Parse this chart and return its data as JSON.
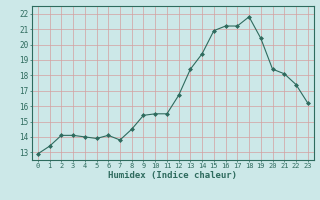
{
  "xlabel": "Humidex (Indice chaleur)",
  "ylabel": "",
  "x": [
    0,
    1,
    2,
    3,
    4,
    5,
    6,
    7,
    8,
    9,
    10,
    11,
    12,
    13,
    14,
    15,
    16,
    17,
    18,
    19,
    20,
    21,
    22,
    23
  ],
  "y": [
    12.9,
    13.4,
    14.1,
    14.1,
    14.0,
    13.9,
    14.1,
    13.8,
    14.5,
    15.4,
    15.5,
    15.5,
    16.7,
    18.4,
    19.4,
    20.9,
    21.2,
    21.2,
    21.8,
    20.4,
    18.4,
    18.1,
    17.4,
    16.2
  ],
  "line_color": "#2e6b5e",
  "marker": "D",
  "marker_size": 2.0,
  "bg_color": "#cce8e8",
  "grid_color": "#d4a0a0",
  "axis_color": "#2e6b5e",
  "tick_label_color": "#2e6b5e",
  "xlabel_color": "#2e6b5e",
  "ylim": [
    12.5,
    22.5
  ],
  "yticks": [
    13,
    14,
    15,
    16,
    17,
    18,
    19,
    20,
    21,
    22
  ],
  "xticks": [
    0,
    1,
    2,
    3,
    4,
    5,
    6,
    7,
    8,
    9,
    10,
    11,
    12,
    13,
    14,
    15,
    16,
    17,
    18,
    19,
    20,
    21,
    22,
    23
  ],
  "xlim": [
    -0.5,
    23.5
  ]
}
